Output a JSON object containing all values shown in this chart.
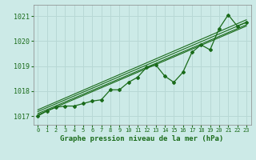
{
  "title": "Graphe pression niveau de la mer (hPa)",
  "bg_color": "#cceae7",
  "grid_color": "#b8d8d5",
  "line_color": "#1a6b1a",
  "text_color": "#1a6b1a",
  "xlim": [
    -0.5,
    23.5
  ],
  "ylim": [
    1016.65,
    1021.45
  ],
  "yticks": [
    1017,
    1018,
    1019,
    1020,
    1021
  ],
  "xticks": [
    0,
    1,
    2,
    3,
    4,
    5,
    6,
    7,
    8,
    9,
    10,
    11,
    12,
    13,
    14,
    15,
    16,
    17,
    18,
    19,
    20,
    21,
    22,
    23
  ],
  "main_data": [
    [
      0,
      1017.0
    ],
    [
      1,
      1017.2
    ],
    [
      2,
      1017.35
    ],
    [
      3,
      1017.4
    ],
    [
      4,
      1017.4
    ],
    [
      5,
      1017.5
    ],
    [
      6,
      1017.6
    ],
    [
      7,
      1017.65
    ],
    [
      8,
      1018.05
    ],
    [
      9,
      1018.05
    ],
    [
      10,
      1018.35
    ],
    [
      11,
      1018.55
    ],
    [
      12,
      1018.95
    ],
    [
      13,
      1019.05
    ],
    [
      14,
      1018.6
    ],
    [
      15,
      1018.35
    ],
    [
      16,
      1018.75
    ],
    [
      17,
      1019.55
    ],
    [
      18,
      1019.85
    ],
    [
      19,
      1019.65
    ],
    [
      20,
      1020.5
    ],
    [
      21,
      1021.05
    ],
    [
      22,
      1020.6
    ],
    [
      23,
      1020.75
    ]
  ],
  "envelope_lines": [
    [
      [
        0,
        1017.05
      ],
      [
        23,
        1020.6
      ]
    ],
    [
      [
        0,
        1017.1
      ],
      [
        23,
        1020.65
      ]
    ],
    [
      [
        0,
        1017.18
      ],
      [
        23,
        1020.75
      ]
    ],
    [
      [
        0,
        1017.25
      ],
      [
        23,
        1020.85
      ]
    ]
  ],
  "xlabel_fontsize": 6.5,
  "ytick_fontsize": 6,
  "xtick_fontsize": 5
}
